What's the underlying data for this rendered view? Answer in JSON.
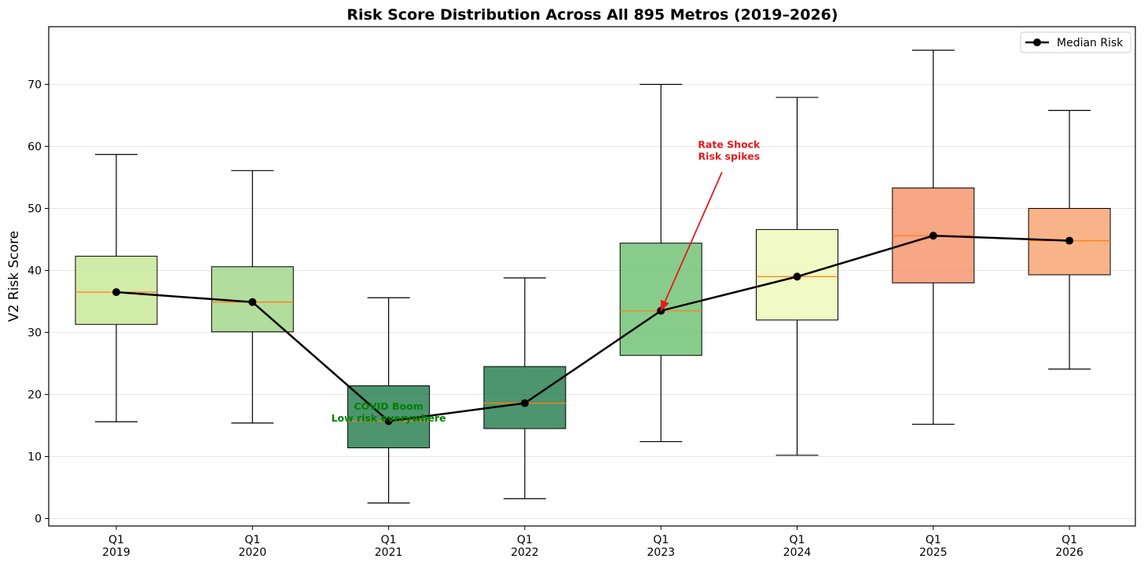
{
  "chart_data": {
    "type": "boxplot",
    "title": "Risk Score Distribution Across All 895 Metros (2019–2026)",
    "xlabel": "",
    "ylabel": "V2 Risk Score",
    "ylim": [
      -1.2,
      79.3
    ],
    "yticks": [
      0,
      10,
      20,
      30,
      40,
      50,
      60,
      70
    ],
    "grid": "horizontal",
    "categories": [
      {
        "q": "Q1",
        "year": "2019"
      },
      {
        "q": "Q1",
        "year": "2020"
      },
      {
        "q": "Q1",
        "year": "2021"
      },
      {
        "q": "Q1",
        "year": "2022"
      },
      {
        "q": "Q1",
        "year": "2023"
      },
      {
        "q": "Q1",
        "year": "2024"
      },
      {
        "q": "Q1",
        "year": "2025"
      },
      {
        "q": "Q1",
        "year": "2026"
      }
    ],
    "boxes": [
      {
        "whislo": 15.6,
        "q1": 31.3,
        "med": 36.5,
        "q3": 42.3,
        "whishi": 58.7,
        "color": "#c5e693"
      },
      {
        "whislo": 15.4,
        "q1": 30.1,
        "med": 34.9,
        "q3": 40.6,
        "whishi": 56.1,
        "color": "#9dd584"
      },
      {
        "whislo": 2.5,
        "q1": 11.4,
        "med": 15.7,
        "q3": 21.4,
        "whishi": 35.6,
        "color": "#1f7a4a"
      },
      {
        "whislo": 3.2,
        "q1": 14.5,
        "med": 18.6,
        "q3": 24.5,
        "whishi": 38.8,
        "color": "#1f7a4a"
      },
      {
        "whislo": 12.4,
        "q1": 26.3,
        "med": 33.5,
        "q3": 44.4,
        "whishi": 70.0,
        "color": "#6abf6f"
      },
      {
        "whislo": 10.2,
        "q1": 32.0,
        "med": 39.0,
        "q3": 46.6,
        "whishi": 67.9,
        "color": "#eef7b5"
      },
      {
        "whislo": 15.2,
        "q1": 38.0,
        "med": 45.6,
        "q3": 53.3,
        "whishi": 75.5,
        "color": "#f59068"
      },
      {
        "whislo": 24.1,
        "q1": 39.3,
        "med": 44.8,
        "q3": 50.0,
        "whishi": 65.8,
        "color": "#f8a06a"
      }
    ],
    "series": [
      {
        "name": "Median Risk",
        "values": [
          36.5,
          34.9,
          15.7,
          18.6,
          33.5,
          39.0,
          45.6,
          44.8
        ],
        "color": "#000000"
      }
    ],
    "legend": {
      "position": "top-right",
      "label": "Median Risk"
    },
    "annotations": [
      {
        "lines": [
          "COVID Boom",
          "Low risk everywhere"
        ],
        "color": "#008000",
        "x_index": 2,
        "y": 16.8,
        "arrow": false
      },
      {
        "lines": [
          "Rate Shock",
          "Risk spikes"
        ],
        "color": "#e31a1c",
        "x_index": 4.5,
        "y": 59.0,
        "arrow": true,
        "arrow_to": {
          "x_index": 4,
          "y": 33.5
        }
      }
    ],
    "median_line_color": "#ff7f0e",
    "box_opacity": 0.8
  }
}
